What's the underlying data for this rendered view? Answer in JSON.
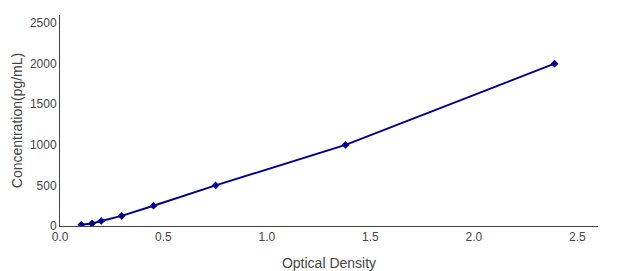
{
  "chart_data": {
    "type": "line",
    "x": [
      0.103,
      0.155,
      0.199,
      0.298,
      0.452,
      0.752,
      1.38,
      2.39
    ],
    "values": [
      15.6,
      31.25,
      62.5,
      125,
      250,
      500,
      1000,
      2000
    ],
    "color": "#00008B",
    "marker": "diamond",
    "line_style": "solid",
    "xlabel": "Optical Density",
    "ylabel": "Concentration(pg/mL)",
    "xlim": [
      0,
      2.6
    ],
    "ylim": [
      0,
      2600
    ],
    "xticks": [
      {
        "value": 0,
        "label": "0.0"
      },
      0.5,
      {
        "value": 1,
        "label": "1.0"
      },
      1.5,
      {
        "value": 2,
        "label": "2.0"
      },
      2.5
    ],
    "yticks": [
      0,
      500,
      1000,
      1500,
      2000,
      2500
    ],
    "grid": false
  }
}
